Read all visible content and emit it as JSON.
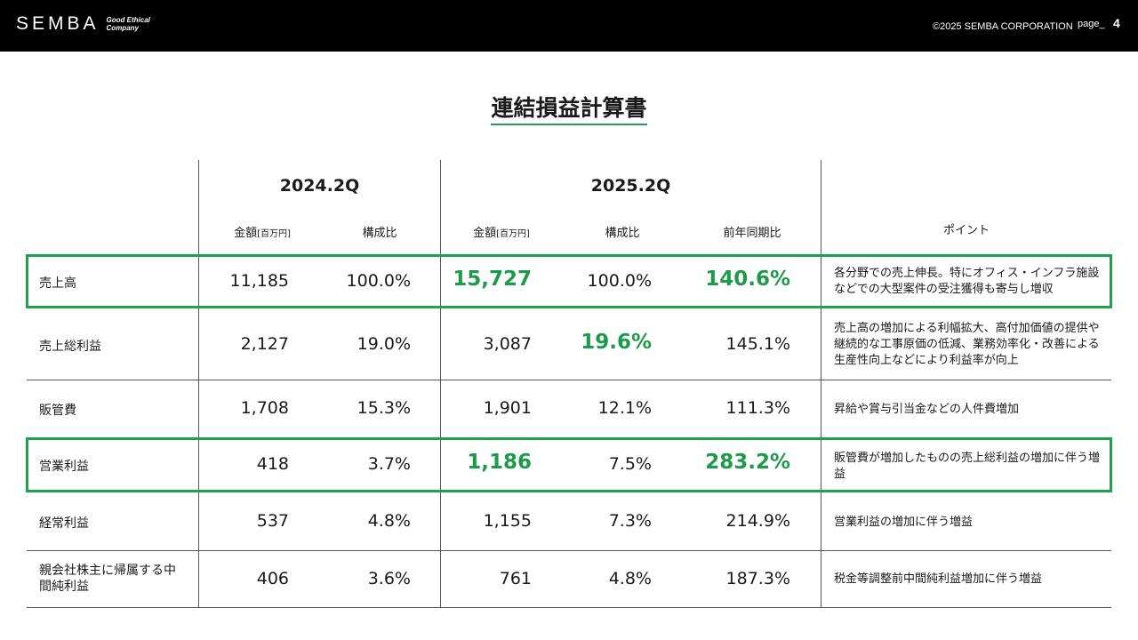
{
  "header": {
    "logo_text": "SEMBA",
    "tagline": "Good Ethical Company",
    "copyright": "©2025 SEMBA CORPORATION",
    "page_label": "page_",
    "page_number": "4"
  },
  "title": "連結損益計算書",
  "accent_color": "#21a050",
  "table": {
    "periods": [
      "2024.2Q",
      "2025.2Q"
    ],
    "subheaders": {
      "amount": "金額",
      "amount_unit": "[百万円]",
      "ratio": "構成比",
      "yoy": "前年同期比",
      "point": "ポイント"
    },
    "rows": [
      {
        "label": "売上高",
        "a2024": "11,185",
        "r2024": "100.0%",
        "a2025": "15,727",
        "r2025": "100.0%",
        "yoy": "140.6%",
        "point": "各分野での売上伸長。特にオフィス・インフラ施設などでの大型案件の受注獲得も寄与し増収"
      },
      {
        "label": "売上総利益",
        "a2024": "2,127",
        "r2024": "19.0%",
        "a2025": "3,087",
        "r2025": "19.6%",
        "yoy": "145.1%",
        "point": "売上高の増加による利幅拡大、高付加価値の提供や継続的な工事原価の低減、業務効率化・改善による生産性向上などにより利益率が向上"
      },
      {
        "label": "販管費",
        "a2024": "1,708",
        "r2024": "15.3%",
        "a2025": "1,901",
        "r2025": "12.1%",
        "yoy": "111.3%",
        "point": "昇給や賞与引当金などの人件費増加"
      },
      {
        "label": "営業利益",
        "a2024": "418",
        "r2024": "3.7%",
        "a2025": "1,186",
        "r2025": "7.5%",
        "yoy": "283.2%",
        "point": "販管費が増加したものの売上総利益の増加に伴う増益"
      },
      {
        "label": "経常利益",
        "a2024": "537",
        "r2024": "4.8%",
        "a2025": "1,155",
        "r2025": "7.3%",
        "yoy": "214.9%",
        "point": "営業利益の増加に伴う増益"
      },
      {
        "label": "親会社株主に帰属する中間純利益",
        "a2024": "406",
        "r2024": "3.6%",
        "a2025": "761",
        "r2025": "4.8%",
        "yoy": "187.3%",
        "point": "税金等調整前中間純利益増加に伴う増益"
      }
    ]
  }
}
